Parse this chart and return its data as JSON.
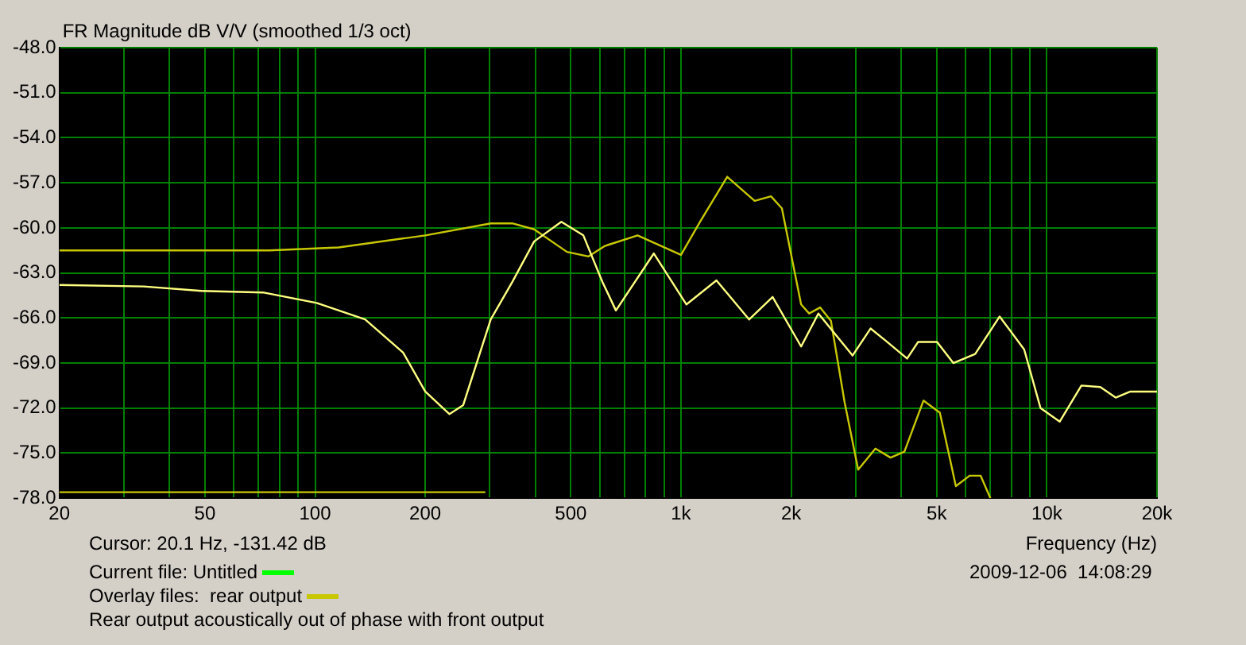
{
  "chart_data": {
    "type": "line",
    "title": "FR Magnitude dB V/V (smoothed 1/3 oct)",
    "xlabel": "Frequency (Hz)",
    "log": "x",
    "grid": true,
    "marker": "none",
    "legend": "bottom",
    "xlim": [
      20,
      20000
    ],
    "xticks": [
      20,
      {
        "value": 30,
        "label": null
      },
      {
        "value": 40,
        "label": null
      },
      50,
      {
        "value": 60,
        "label": null
      },
      {
        "value": 70,
        "label": null
      },
      {
        "value": 80,
        "label": null
      },
      {
        "value": 90,
        "label": null
      },
      100,
      200,
      {
        "value": 300,
        "label": null
      },
      {
        "value": 400,
        "label": null
      },
      500,
      {
        "value": 600,
        "label": null
      },
      {
        "value": 700,
        "label": null
      },
      {
        "value": 800,
        "label": null
      },
      {
        "value": 900,
        "label": null
      },
      {
        "value": 1000,
        "label": "1k"
      },
      {
        "value": 2000,
        "label": "2k"
      },
      {
        "value": 3000,
        "label": null
      },
      {
        "value": 4000,
        "label": null
      },
      {
        "value": 5000,
        "label": "5k"
      },
      {
        "value": 6000,
        "label": null
      },
      {
        "value": 7000,
        "label": null
      },
      {
        "value": 8000,
        "label": null
      },
      {
        "value": 9000,
        "label": null
      },
      {
        "value": 10000,
        "label": "10k"
      },
      {
        "value": 20000,
        "label": "20k"
      }
    ],
    "ylim": [
      -78,
      -48
    ],
    "yticks": [
      {
        "value": -78,
        "label": "-78.0"
      },
      {
        "value": -75,
        "label": "-75.0"
      },
      {
        "value": -72,
        "label": "-72.0"
      },
      {
        "value": -69,
        "label": "-69.0"
      },
      {
        "value": -66,
        "label": "-66.0"
      },
      {
        "value": -63,
        "label": "-63.0"
      },
      {
        "value": -60,
        "label": "-60.0"
      },
      {
        "value": -57,
        "label": "-57.0"
      },
      {
        "value": -54,
        "label": "-54.0"
      },
      {
        "value": -51,
        "label": "-51.0"
      },
      {
        "value": -48,
        "label": "-48.0"
      }
    ],
    "annotations": [
      "Cursor: 20.1 Hz, -131.42 dB",
      "Current file: Untitled",
      "Overlay files:",
      "2009-12-06  14:08:29",
      "Rear output acoustically out of phase with front output"
    ],
    "series": [
      {
        "color": "#ffff80",
        "x": [
          20,
          34,
          49,
          72,
          101,
          137,
          174,
          200,
          233,
          254,
          302,
          346,
          397,
          471,
          541,
          610,
          664,
          843,
          1035,
          1250,
          1536,
          1780,
          2130,
          2375,
          2944,
          3297,
          3620,
          4150,
          4445,
          5010,
          5550,
          6370,
          7430,
          8670,
          9610,
          10840,
          12430,
          14000,
          15420,
          16910,
          20000
        ],
        "values": [
          -63.8,
          -63.9,
          -64.2,
          -64.3,
          -65.0,
          -66.1,
          -68.3,
          -70.9,
          -72.4,
          -71.8,
          -66.1,
          -63.6,
          -60.9,
          -59.6,
          -60.5,
          -63.6,
          -65.5,
          -61.7,
          -65.1,
          -63.5,
          -66.1,
          -64.6,
          -67.9,
          -65.7,
          -68.5,
          -66.7,
          -67.5,
          -68.7,
          -67.6,
          -67.6,
          -69.0,
          -68.4,
          -65.9,
          -68.1,
          -72.0,
          -72.9,
          -70.5,
          -70.6,
          -71.3,
          -70.9,
          -70.9
        ]
      },
      {
        "name": "rear output",
        "color": "#c8c800",
        "x": [
          20,
          75,
          116,
          200,
          302,
          346,
          397,
          488,
          559,
          620,
          761,
          1000,
          1127,
          1338,
          1590,
          1762,
          1887,
          2130,
          2240,
          2400,
          2570,
          2800,
          3050,
          3400,
          3740,
          4080,
          4600,
          5100,
          5640,
          6150,
          6590,
          7010
        ],
        "values": [
          -61.5,
          -61.5,
          -61.3,
          -60.5,
          -59.7,
          -59.7,
          -60.1,
          -61.6,
          -61.9,
          -61.2,
          -60.5,
          -61.8,
          -59.6,
          -56.6,
          -58.2,
          -57.9,
          -58.7,
          -65.1,
          -65.7,
          -65.3,
          -66.2,
          -71.6,
          -76.1,
          -74.7,
          -75.3,
          -74.9,
          -71.5,
          -72.3,
          -77.2,
          -76.5,
          -76.5,
          -78.0
        ]
      },
      {
        "color": "#c8c800",
        "x": [
          20,
          292
        ],
        "values": [
          -77.6,
          -77.6
        ]
      }
    ]
  }
}
